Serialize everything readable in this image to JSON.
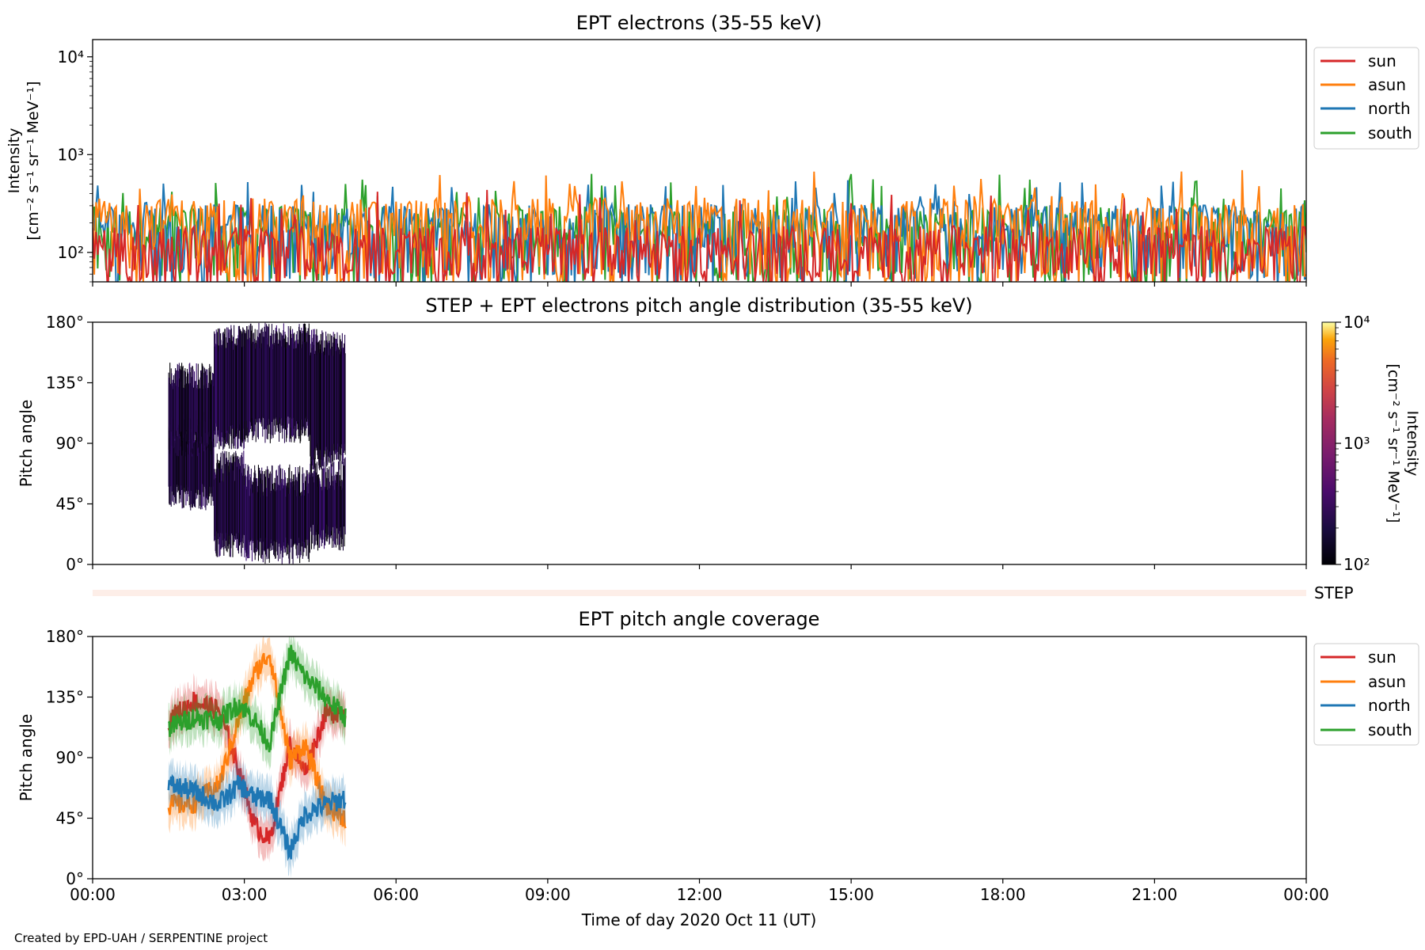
{
  "figure": {
    "credit": "Created by EPD-UAH / SERPENTINE project",
    "xlabel": "Time of day 2020 Oct 11 (UT)",
    "xticks": [
      "00:00",
      "03:00",
      "06:00",
      "09:00",
      "12:00",
      "15:00",
      "18:00",
      "21:00",
      "00:00"
    ],
    "xlim_hours": [
      0,
      24
    ]
  },
  "colors": {
    "sun": "#d62728",
    "asun": "#ff7f0e",
    "north": "#1f77b4",
    "south": "#2ca02c"
  },
  "chart_data": [
    {
      "type": "line",
      "title": "EPT electrons (35-55 keV)",
      "ylabel_line1": "Intensity",
      "ylabel_line2": "[cm⁻² s⁻¹ sr⁻¹ MeV⁻¹]",
      "yscale": "log",
      "ylim": [
        50,
        15000
      ],
      "yticks": [
        {
          "value": 100,
          "label": "10²"
        },
        {
          "value": 1000,
          "label": "10³"
        },
        {
          "value": 10000,
          "label": "10⁴"
        }
      ],
      "legend_position": "outside-right-top",
      "series": [
        {
          "name": "sun",
          "typical": 120,
          "spread": [
            55,
            450
          ]
        },
        {
          "name": "asun",
          "typical": 230,
          "spread": [
            60,
            700
          ]
        },
        {
          "name": "north",
          "typical": 200,
          "spread": [
            60,
            550
          ]
        },
        {
          "name": "south",
          "typical": 190,
          "spread": [
            60,
            650
          ]
        }
      ],
      "x_range_hours": [
        0,
        24
      ]
    },
    {
      "type": "heatmap",
      "title": "STEP + EPT electrons pitch angle distribution (35-55 keV)",
      "ylabel": "Pitch angle",
      "ylim": [
        0,
        180
      ],
      "yticks": [
        {
          "value": 0,
          "label": "0°"
        },
        {
          "value": 45,
          "label": "45°"
        },
        {
          "value": 90,
          "label": "90°"
        },
        {
          "value": 135,
          "label": "135°"
        },
        {
          "value": 180,
          "label": "180°"
        }
      ],
      "data_range_hours": [
        1.5,
        5.0
      ],
      "bands": [
        {
          "from": 1.5,
          "to": 2.4,
          "pa_low": [
            40,
            115
          ],
          "pa_high": [
            80,
            150
          ]
        },
        {
          "from": 2.4,
          "to": 3.0,
          "pa_low": [
            5,
            85
          ],
          "pa_high": [
            85,
            178
          ]
        },
        {
          "from": 3.0,
          "to": 4.3,
          "pa_low": [
            0,
            75
          ],
          "pa_high": [
            90,
            180
          ]
        },
        {
          "from": 4.3,
          "to": 5.0,
          "pa_low": [
            10,
            80
          ],
          "pa_high": [
            70,
            175
          ]
        }
      ],
      "colorbar": {
        "label_line1": "Intensity",
        "label_line2": "[cm⁻² s⁻¹ sr⁻¹ MeV⁻¹]",
        "scale": "log",
        "range": [
          100,
          10000
        ],
        "ticks": [
          {
            "value": 100,
            "label": "10²"
          },
          {
            "value": 1000,
            "label": "10³"
          },
          {
            "value": 10000,
            "label": "10⁴"
          }
        ],
        "colormap": "inferno"
      },
      "step_label": "STEP"
    },
    {
      "type": "line",
      "title": "EPT pitch angle coverage",
      "ylabel": "Pitch angle",
      "ylim": [
        0,
        180
      ],
      "yticks": [
        {
          "value": 0,
          "label": "0°"
        },
        {
          "value": 45,
          "label": "45°"
        },
        {
          "value": 90,
          "label": "90°"
        },
        {
          "value": 135,
          "label": "135°"
        },
        {
          "value": 180,
          "label": "180°"
        }
      ],
      "legend_position": "outside-right-top",
      "series": [
        {
          "name": "sun",
          "x": [
            1.5,
            2.0,
            2.5,
            2.9,
            3.2,
            3.5,
            3.9,
            4.2,
            4.6,
            5.0
          ],
          "y": [
            118,
            132,
            125,
            80,
            40,
            28,
            100,
            80,
            122,
            125
          ],
          "band": 14
        },
        {
          "name": "asun",
          "x": [
            1.5,
            2.0,
            2.5,
            2.9,
            3.2,
            3.5,
            3.9,
            4.2,
            4.6,
            5.0
          ],
          "y": [
            55,
            56,
            70,
            120,
            152,
            168,
            88,
            100,
            55,
            45
          ],
          "band": 14
        },
        {
          "name": "north",
          "x": [
            1.5,
            2.0,
            2.5,
            2.9,
            3.2,
            3.5,
            3.9,
            4.2,
            4.6,
            5.0
          ],
          "y": [
            70,
            65,
            55,
            70,
            60,
            60,
            20,
            48,
            55,
            60
          ],
          "band": 14
        },
        {
          "name": "south",
          "x": [
            1.5,
            2.0,
            2.5,
            2.9,
            3.2,
            3.5,
            3.9,
            4.2,
            4.6,
            5.0
          ],
          "y": [
            112,
            120,
            118,
            130,
            118,
            100,
            168,
            150,
            135,
            120
          ],
          "band": 14
        }
      ]
    }
  ]
}
